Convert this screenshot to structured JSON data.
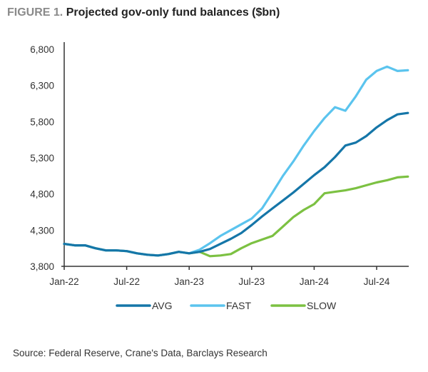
{
  "header": {
    "figure_label": "FIGURE 1.",
    "title": "Projected gov-only fund balances ($bn)"
  },
  "source": "Source: Federal Reserve, Crane's Data, Barclays Research",
  "chart_data": {
    "type": "line",
    "title": "Projected gov-only fund balances ($bn)",
    "xlabel": "",
    "ylabel": "",
    "ylim": [
      3800,
      6800
    ],
    "yticks": [
      3800,
      4300,
      4800,
      5300,
      5800,
      6300,
      6800
    ],
    "ytick_labels": [
      "3,800",
      "4,300",
      "4,800",
      "5,300",
      "5,800",
      "6,300",
      "6,800"
    ],
    "xtick_labels": [
      "Jan-22",
      "Jul-22",
      "Jan-23",
      "Jul-23",
      "Jan-24",
      "Jul-24"
    ],
    "xtick_positions": [
      0,
      6,
      12,
      18,
      24,
      30
    ],
    "x": [
      "Jan-22",
      "Feb-22",
      "Mar-22",
      "Apr-22",
      "May-22",
      "Jun-22",
      "Jul-22",
      "Aug-22",
      "Sep-22",
      "Oct-22",
      "Nov-22",
      "Dec-22",
      "Jan-23",
      "Feb-23",
      "Mar-23",
      "Apr-23",
      "May-23",
      "Jun-23",
      "Jul-23",
      "Aug-23",
      "Sep-23",
      "Oct-23",
      "Nov-23",
      "Dec-23",
      "Jan-24",
      "Feb-24",
      "Mar-24",
      "Apr-24",
      "May-24",
      "Jun-24",
      "Jul-24",
      "Aug-24",
      "Sep-24",
      "Oct-24"
    ],
    "grid": false,
    "legend_position": "bottom",
    "series": [
      {
        "name": "AVG",
        "color": "#1576a8",
        "values": [
          4110,
          4090,
          4090,
          4050,
          4020,
          4020,
          4010,
          3980,
          3960,
          3950,
          3970,
          4000,
          3980,
          4000,
          4040,
          4110,
          4180,
          4260,
          4370,
          4490,
          4600,
          4710,
          4820,
          4940,
          5060,
          5170,
          5310,
          5470,
          5510,
          5600,
          5720,
          5820,
          5900,
          5920
        ]
      },
      {
        "name": "FAST",
        "color": "#5bc4ee",
        "values": [
          4110,
          4090,
          4090,
          4050,
          4020,
          4020,
          4010,
          3980,
          3960,
          3950,
          3970,
          4000,
          3980,
          4030,
          4120,
          4220,
          4300,
          4380,
          4460,
          4600,
          4820,
          5050,
          5250,
          5470,
          5670,
          5850,
          6000,
          5950,
          6150,
          6380,
          6500,
          6560,
          6500,
          6510
        ]
      },
      {
        "name": "SLOW",
        "color": "#7cc142",
        "values": [
          4110,
          4090,
          4090,
          4050,
          4020,
          4020,
          4010,
          3980,
          3960,
          3950,
          3970,
          4000,
          3980,
          4000,
          3940,
          3950,
          3970,
          4050,
          4120,
          4170,
          4220,
          4350,
          4480,
          4580,
          4660,
          4810,
          4830,
          4850,
          4880,
          4920,
          4960,
          4990,
          5030,
          5040
        ]
      }
    ]
  }
}
